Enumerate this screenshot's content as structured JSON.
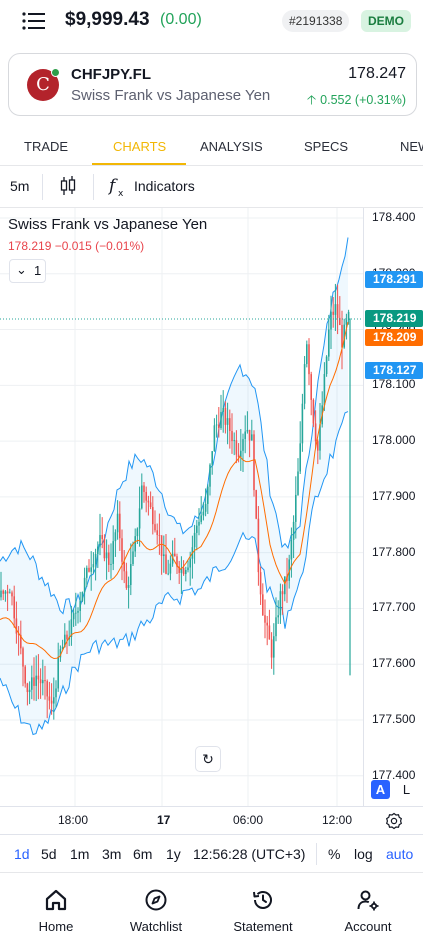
{
  "header": {
    "balance": "$9,999.43",
    "balance_change": "(0.00)",
    "account_id": "#2191338",
    "account_mode": "DEMO"
  },
  "instrument": {
    "avatar_letter": "C",
    "symbol": "CHFJPY.FL",
    "name": "Swiss Frank vs Japanese Yen",
    "price": "178.247",
    "change": "0.552 (+0.31%)"
  },
  "tabs": [
    {
      "label": "TRADE",
      "active": false
    },
    {
      "label": "CHARTS",
      "active": true
    },
    {
      "label": "ANALYSIS",
      "active": false
    },
    {
      "label": "SPECS",
      "active": false
    },
    {
      "label": "NEWS",
      "active": false
    }
  ],
  "chart_toolbar": {
    "interval": "5m",
    "indicators_label": "Indicators"
  },
  "chart_legend": {
    "title": "Swiss Frank vs Japanese Yen",
    "values": "178.219  −0.015 (−0.01%)",
    "indicator_count": "1"
  },
  "price_tags": {
    "upper_band": "178.291",
    "last_price": "178.219",
    "ma": "178.209",
    "lower_band": "178.127"
  },
  "colors": {
    "up": "#26a69a",
    "down": "#ef5350",
    "bands": "#2196f3",
    "ma": "#ff6d00",
    "accent": "#f2b705",
    "link_blue": "#2962ff"
  },
  "chart_data": {
    "type": "candlestick",
    "title": "Swiss Frank vs Japanese Yen",
    "ylim": [
      177.4,
      178.42
    ],
    "y_ticks": [
      "178.400",
      "178.300",
      "178.200",
      "178.100",
      "178.000",
      "177.900",
      "177.800",
      "177.700",
      "177.600",
      "177.500",
      "177.400"
    ],
    "x_ticks": [
      "18:00",
      "17",
      "06:00",
      "12:00"
    ],
    "series": [
      {
        "name": "Price",
        "approx_path": [
          [
            0,
            177.72
          ],
          [
            10,
            177.74
          ],
          [
            20,
            177.63
          ],
          [
            28,
            177.55
          ],
          [
            36,
            177.58
          ],
          [
            44,
            177.56
          ],
          [
            52,
            177.52
          ],
          [
            60,
            177.62
          ],
          [
            70,
            177.66
          ],
          [
            80,
            177.72
          ],
          [
            90,
            177.78
          ],
          [
            100,
            177.82
          ],
          [
            110,
            177.78
          ],
          [
            118,
            177.86
          ],
          [
            126,
            177.73
          ],
          [
            134,
            177.8
          ],
          [
            142,
            177.92
          ],
          [
            150,
            177.88
          ],
          [
            158,
            177.84
          ],
          [
            166,
            177.76
          ],
          [
            174,
            177.79
          ],
          [
            182,
            177.77
          ],
          [
            190,
            177.79
          ],
          [
            198,
            177.86
          ],
          [
            206,
            177.88
          ],
          [
            214,
            178.02
          ],
          [
            222,
            178.05
          ],
          [
            230,
            178.02
          ],
          [
            238,
            177.98
          ],
          [
            246,
            178.03
          ],
          [
            252,
            178.0
          ],
          [
            258,
            177.78
          ],
          [
            264,
            177.68
          ],
          [
            272,
            177.62
          ],
          [
            280,
            177.72
          ],
          [
            288,
            177.76
          ],
          [
            294,
            177.86
          ],
          [
            300,
            177.98
          ],
          [
            306,
            178.2
          ],
          [
            312,
            178.06
          ],
          [
            318,
            177.98
          ],
          [
            324,
            178.1
          ],
          [
            330,
            178.22
          ],
          [
            336,
            178.24
          ],
          [
            342,
            178.18
          ],
          [
            348,
            178.219
          ]
        ]
      },
      {
        "name": "MA",
        "approx_path": [
          [
            0,
            177.68
          ],
          [
            20,
            177.66
          ],
          [
            40,
            177.62
          ],
          [
            60,
            177.62
          ],
          [
            80,
            177.66
          ],
          [
            100,
            177.72
          ],
          [
            120,
            177.78
          ],
          [
            140,
            177.82
          ],
          [
            160,
            177.81
          ],
          [
            180,
            177.78
          ],
          [
            200,
            177.8
          ],
          [
            220,
            177.9
          ],
          [
            240,
            177.98
          ],
          [
            255,
            177.96
          ],
          [
            270,
            177.82
          ],
          [
            285,
            177.74
          ],
          [
            300,
            177.8
          ],
          [
            315,
            177.98
          ],
          [
            330,
            178.1
          ],
          [
            348,
            178.209
          ]
        ]
      }
    ]
  },
  "time_range": {
    "items": [
      "1d",
      "5d",
      "1m",
      "3m",
      "6m",
      "1y"
    ],
    "active": "1d",
    "clock": "12:56:28 (UTC+3)",
    "percent": "%",
    "log": "log",
    "auto": "auto"
  },
  "bottom_nav": [
    {
      "label": "Home"
    },
    {
      "label": "Watchlist"
    },
    {
      "label": "Statement"
    },
    {
      "label": "Account"
    }
  ]
}
